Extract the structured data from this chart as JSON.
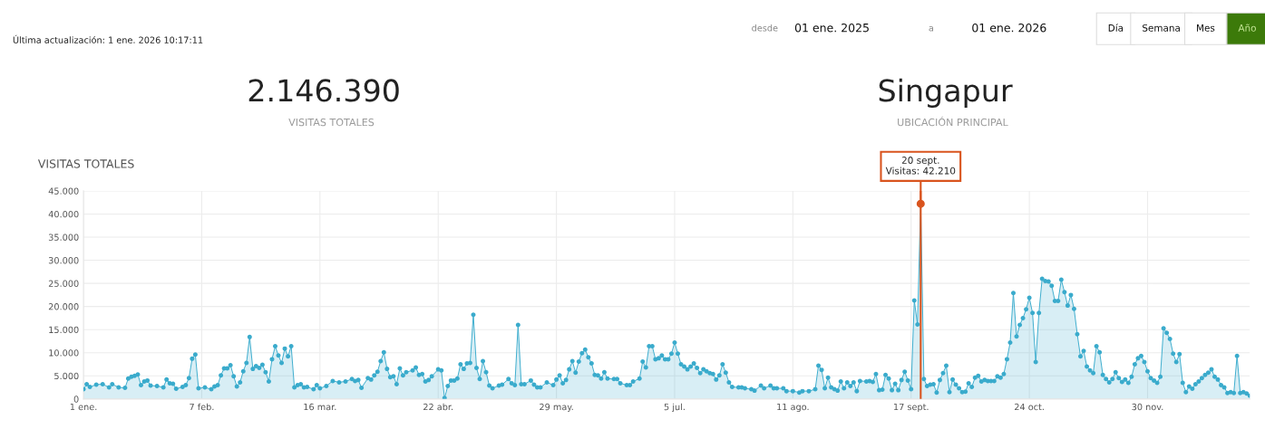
{
  "chart_data": {
    "type": "area",
    "title": "VISITAS TOTALES",
    "annotations": [
      "Última actualización: 1 ene. 2026 10:17:11",
      "desde",
      "01 ene. 2025",
      "a",
      "01 ene. 2026",
      "Día",
      "Semana",
      "Mes",
      "Año",
      "2.146.390",
      "VISITAS TOTALES",
      "Singapur",
      "UBICACIÓN PRINCIPAL",
      {
        "text": "20 sept.\nVisitas: 42.210",
        "x": "2025-09-20",
        "y": 42210
      }
    ],
    "x": [
      "2025-01-01",
      "2025-01-02",
      "2025-01-03",
      "2025-01-05",
      "2025-01-07",
      "2025-01-09",
      "2025-01-10",
      "2025-01-12",
      "2025-01-14",
      "2025-01-15",
      "2025-01-16",
      "2025-01-17",
      "2025-01-18",
      "2025-01-19",
      "2025-01-20",
      "2025-01-21",
      "2025-01-22",
      "2025-01-24",
      "2025-01-26",
      "2025-01-27",
      "2025-01-28",
      "2025-01-29",
      "2025-01-30",
      "2025-02-01",
      "2025-02-02",
      "2025-02-03",
      "2025-02-04",
      "2025-02-05",
      "2025-02-06",
      "2025-02-08",
      "2025-02-10",
      "2025-02-11",
      "2025-02-12",
      "2025-02-13",
      "2025-02-14",
      "2025-02-15",
      "2025-02-16",
      "2025-02-17",
      "2025-02-18",
      "2025-02-19",
      "2025-02-20",
      "2025-02-21",
      "2025-02-22",
      "2025-02-23",
      "2025-02-24",
      "2025-02-25",
      "2025-02-26",
      "2025-02-27",
      "2025-02-28",
      "2025-03-01",
      "2025-03-02",
      "2025-03-03",
      "2025-03-04",
      "2025-03-05",
      "2025-03-06",
      "2025-03-07",
      "2025-03-08",
      "2025-03-09",
      "2025-03-10",
      "2025-03-11",
      "2025-03-12",
      "2025-03-14",
      "2025-03-15",
      "2025-03-16",
      "2025-03-18",
      "2025-03-20",
      "2025-03-22",
      "2025-03-24",
      "2025-03-26",
      "2025-03-27",
      "2025-03-28",
      "2025-03-29",
      "2025-03-31",
      "2025-04-01",
      "2025-04-02",
      "2025-04-03",
      "2025-04-04",
      "2025-04-05",
      "2025-04-06",
      "2025-04-07",
      "2025-04-08",
      "2025-04-09",
      "2025-04-10",
      "2025-04-11",
      "2025-04-12",
      "2025-04-14",
      "2025-04-15",
      "2025-04-16",
      "2025-04-17",
      "2025-04-18",
      "2025-04-19",
      "2025-04-20",
      "2025-04-22",
      "2025-04-23",
      "2025-04-24",
      "2025-04-25",
      "2025-04-26",
      "2025-04-27",
      "2025-04-28",
      "2025-04-29",
      "2025-04-30",
      "2025-05-01",
      "2025-05-02",
      "2025-05-03",
      "2025-05-04",
      "2025-05-05",
      "2025-05-06",
      "2025-05-07",
      "2025-05-08",
      "2025-05-09",
      "2025-05-11",
      "2025-05-12",
      "2025-05-14",
      "2025-05-15",
      "2025-05-16",
      "2025-05-17",
      "2025-05-18",
      "2025-05-19",
      "2025-05-21",
      "2025-05-22",
      "2025-05-23",
      "2025-05-24",
      "2025-05-26",
      "2025-05-28",
      "2025-05-29",
      "2025-05-30",
      "2025-05-31",
      "2025-06-01",
      "2025-06-02",
      "2025-06-03",
      "2025-06-04",
      "2025-06-05",
      "2025-06-06",
      "2025-06-07",
      "2025-06-08",
      "2025-06-09",
      "2025-06-10",
      "2025-06-11",
      "2025-06-12",
      "2025-06-13",
      "2025-06-14",
      "2025-06-16",
      "2025-06-17",
      "2025-06-18",
      "2025-06-20",
      "2025-06-21",
      "2025-06-22",
      "2025-06-24",
      "2025-06-25",
      "2025-06-26",
      "2025-06-27",
      "2025-06-28",
      "2025-06-29",
      "2025-06-30",
      "2025-07-01",
      "2025-07-02",
      "2025-07-03",
      "2025-07-04",
      "2025-07-05",
      "2025-07-06",
      "2025-07-07",
      "2025-07-08",
      "2025-07-09",
      "2025-07-10",
      "2025-07-11",
      "2025-07-12",
      "2025-07-13",
      "2025-07-14",
      "2025-07-15",
      "2025-07-16",
      "2025-07-17",
      "2025-07-18",
      "2025-07-19",
      "2025-07-20",
      "2025-07-21",
      "2025-07-22",
      "2025-07-23",
      "2025-07-25",
      "2025-07-26",
      "2025-07-27",
      "2025-07-29",
      "2025-07-30",
      "2025-08-01",
      "2025-08-02",
      "2025-08-04",
      "2025-08-05",
      "2025-08-06",
      "2025-08-08",
      "2025-08-09",
      "2025-08-11",
      "2025-08-13",
      "2025-08-14",
      "2025-08-16",
      "2025-08-18",
      "2025-08-19",
      "2025-08-20",
      "2025-08-21",
      "2025-08-22",
      "2025-08-23",
      "2025-08-24",
      "2025-08-25",
      "2025-08-26",
      "2025-08-27",
      "2025-08-28",
      "2025-08-29",
      "2025-08-30",
      "2025-08-31",
      "2025-09-01",
      "2025-09-03",
      "2025-09-04",
      "2025-09-05",
      "2025-09-06",
      "2025-09-07",
      "2025-09-08",
      "2025-09-09",
      "2025-09-10",
      "2025-09-11",
      "2025-09-12",
      "2025-09-13",
      "2025-09-14",
      "2025-09-15",
      "2025-09-16",
      "2025-09-17",
      "2025-09-18",
      "2025-09-19",
      "2025-09-20",
      "2025-09-21",
      "2025-09-22",
      "2025-09-23",
      "2025-09-24",
      "2025-09-25",
      "2025-09-26",
      "2025-09-27",
      "2025-09-28",
      "2025-09-29",
      "2025-09-30",
      "2025-10-01",
      "2025-10-02",
      "2025-10-03",
      "2025-10-04",
      "2025-10-05",
      "2025-10-06",
      "2025-10-07",
      "2025-10-08",
      "2025-10-09",
      "2025-10-10",
      "2025-10-11",
      "2025-10-12",
      "2025-10-13",
      "2025-10-14",
      "2025-10-15",
      "2025-10-16",
      "2025-10-17",
      "2025-10-18",
      "2025-10-19",
      "2025-10-20",
      "2025-10-21",
      "2025-10-22",
      "2025-10-23",
      "2025-10-24",
      "2025-10-25",
      "2025-10-26",
      "2025-10-27",
      "2025-10-28",
      "2025-10-29",
      "2025-10-30",
      "2025-10-31",
      "2025-11-01",
      "2025-11-02",
      "2025-11-03",
      "2025-11-04",
      "2025-11-05",
      "2025-11-06",
      "2025-11-07",
      "2025-11-08",
      "2025-11-09",
      "2025-11-10",
      "2025-11-11",
      "2025-11-12",
      "2025-11-13",
      "2025-11-14",
      "2025-11-15",
      "2025-11-16",
      "2025-11-17",
      "2025-11-18",
      "2025-11-19",
      "2025-11-20",
      "2025-11-21",
      "2025-11-22",
      "2025-11-23",
      "2025-11-24",
      "2025-11-25",
      "2025-11-26",
      "2025-11-27",
      "2025-11-28",
      "2025-11-29",
      "2025-11-30",
      "2025-12-01",
      "2025-12-02",
      "2025-12-03",
      "2025-12-04",
      "2025-12-05",
      "2025-12-06",
      "2025-12-07",
      "2025-12-08",
      "2025-12-09",
      "2025-12-10",
      "2025-12-11",
      "2025-12-12",
      "2025-12-13",
      "2025-12-14",
      "2025-12-15",
      "2025-12-16",
      "2025-12-17",
      "2025-12-18",
      "2025-12-19",
      "2025-12-20",
      "2025-12-21",
      "2025-12-22",
      "2025-12-23",
      "2025-12-24",
      "2025-12-25",
      "2025-12-26",
      "2025-12-27",
      "2025-12-28",
      "2025-12-29",
      "2025-12-30",
      "2025-12-31",
      "2026-01-01"
    ],
    "series": [
      {
        "color": "#3aabcc",
        "values": [
          2100,
          3200,
          2600,
          3100,
          3200,
          2500,
          3200,
          2500,
          2400,
          4400,
          4800,
          5000,
          5300,
          3000,
          3800,
          4000,
          2900,
          2800,
          2500,
          4200,
          3400,
          3300,
          2200,
          2600,
          3000,
          4500,
          8700,
          9600,
          2300,
          2500,
          2100,
          2700,
          3000,
          5100,
          6600,
          6600,
          7300,
          4900,
          2700,
          3600,
          6000,
          7800,
          13400,
          6500,
          7100,
          6700,
          7400,
          5800,
          3800,
          8600,
          11400,
          9400,
          7800,
          10900,
          9200,
          11400,
          2500,
          3000,
          3200,
          2500,
          2600,
          2100,
          3000,
          2300,
          2800,
          3900,
          3600,
          3800,
          4300,
          3900,
          4100,
          2400,
          4500,
          4200,
          5100,
          5900,
          8200,
          10100,
          6500,
          4700,
          4900,
          3200,
          6600,
          5100,
          5800,
          6200,
          6800,
          5200,
          5400,
          3800,
          4100,
          4900,
          6400,
          6200,
          200,
          2800,
          4000,
          4000,
          4400,
          7500,
          6500,
          7700,
          7800,
          18200,
          6700,
          4300,
          8200,
          5800,
          2900,
          2300,
          2900,
          3100,
          4300,
          3400,
          3000,
          16000,
          3200,
          3200,
          4000,
          3100,
          2500,
          2500,
          3600,
          3000,
          4200,
          5100,
          3400,
          4100,
          6400,
          8200,
          5700,
          8100,
          9900,
          10700,
          9000,
          7700,
          5200,
          5100,
          4400,
          5800,
          4400,
          4300,
          4300,
          3400,
          3000,
          3000,
          3800,
          4400,
          8100,
          6800,
          11400,
          11400,
          8600,
          8800,
          9400,
          8600,
          8600,
          9800,
          12200,
          9800,
          7500,
          7000,
          6400,
          7000,
          7700,
          6700,
          5600,
          6400,
          6000,
          5600,
          5400,
          4200,
          5100,
          7500,
          5700,
          3600,
          2600,
          2500,
          2500,
          2300,
          2100,
          1800,
          2900,
          2300,
          2900,
          2300,
          2300,
          2300,
          1700,
          1700,
          1400,
          1700,
          1700,
          2100,
          7200,
          6300,
          2300,
          4600,
          2500,
          2100,
          1800,
          3800,
          2300,
          3600,
          2800,
          3600,
          1700,
          3900,
          3800,
          3900,
          3700,
          5400,
          1900,
          2000,
          5200,
          4400,
          1900,
          3300,
          1900,
          4100,
          5900,
          4000,
          2100,
          21300,
          16100,
          42210,
          4300,
          2800,
          3100,
          3200,
          1400,
          4100,
          5600,
          7200,
          1500,
          4200,
          3100,
          2300,
          1500,
          1600,
          3400,
          2600,
          4600,
          5000,
          3800,
          4100,
          3900,
          3900,
          3900,
          4900,
          4600,
          5400,
          8600,
          12200,
          22900,
          13500,
          16000,
          17500,
          19400,
          21900,
          18600,
          8000,
          18600,
          26000,
          25500,
          25400,
          24500,
          21200,
          21200,
          25800,
          23100,
          20200,
          22500,
          19500,
          14000,
          9200,
          10400,
          7000,
          6200,
          5600,
          11400,
          10100,
          5200,
          4300,
          3600,
          4300,
          5800,
          4500,
          3700,
          4200,
          3500,
          4800,
          7500,
          8800,
          9300,
          8000,
          6000,
          4500,
          4000,
          3500,
          4800,
          15300,
          14300,
          13000,
          9800,
          8000,
          9700,
          3500,
          1500,
          2700,
          2200,
          3200,
          3800,
          4500,
          5200,
          5700,
          6400,
          4800,
          4200,
          3000,
          2500,
          1300,
          1500,
          1300,
          9300,
          1300,
          1500,
          1200,
          700
        ]
      }
    ],
    "xlim": [
      "2025-01-01",
      "2026-01-01"
    ],
    "xticks": [
      {
        "value": "2025-01-01",
        "label": "1 ene."
      },
      {
        "value": "2025-02-07",
        "label": "7 feb."
      },
      {
        "value": "2025-03-16",
        "label": "16 mar."
      },
      {
        "value": "2025-04-22",
        "label": "22 abr."
      },
      {
        "value": "2025-05-29",
        "label": "29 may."
      },
      {
        "value": "2025-07-05",
        "label": "5 jul."
      },
      {
        "value": "2025-08-11",
        "label": "11 ago."
      },
      {
        "value": "2025-09-17",
        "label": "17 sept."
      },
      {
        "value": "2025-10-24",
        "label": "24 oct."
      },
      {
        "value": "2025-11-30",
        "label": "30 nov."
      }
    ],
    "ylim": [
      0,
      45000
    ],
    "yticks": [
      0,
      {
        "value": 5000,
        "label": "5.000"
      },
      {
        "value": 10000,
        "label": "10.000"
      },
      {
        "value": 15000,
        "label": "15.000"
      },
      {
        "value": 20000,
        "label": "20.000"
      },
      {
        "value": 25000,
        "label": "25.000"
      },
      {
        "value": 30000,
        "label": "30.000"
      },
      {
        "value": 35000,
        "label": "35.000"
      },
      {
        "value": 40000,
        "label": "40.000"
      },
      {
        "value": 45000,
        "label": "45.000"
      }
    ],
    "ref_lines": [
      {
        "axis": "x",
        "value": "2025-09-20",
        "label": null,
        "color": "#d9541e"
      }
    ],
    "grid": true,
    "marker": "circle",
    "line_style": "solid",
    "legend": false
  }
}
